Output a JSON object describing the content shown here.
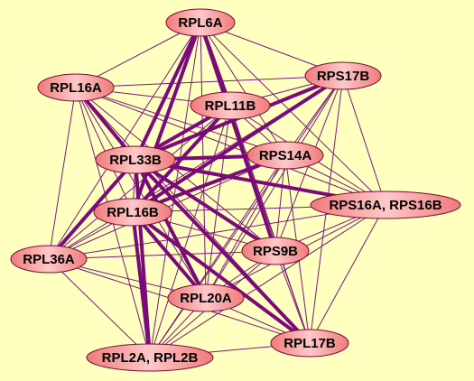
{
  "nodes": [
    {
      "label": "RPL6A"
    },
    {
      "label": "RPS17B"
    },
    {
      "label": "RPL16A"
    },
    {
      "label": "RPL11B"
    },
    {
      "label": "RPL33B"
    },
    {
      "label": "RPS14A"
    },
    {
      "label": "RPS16A, RPS16B"
    },
    {
      "label": "RPL16B"
    },
    {
      "label": "RPL36A"
    },
    {
      "label": "RPS9B"
    },
    {
      "label": "RPL20A"
    },
    {
      "label": "RPL17B"
    },
    {
      "label": "RPL2A, RPL2B"
    }
  ]
}
